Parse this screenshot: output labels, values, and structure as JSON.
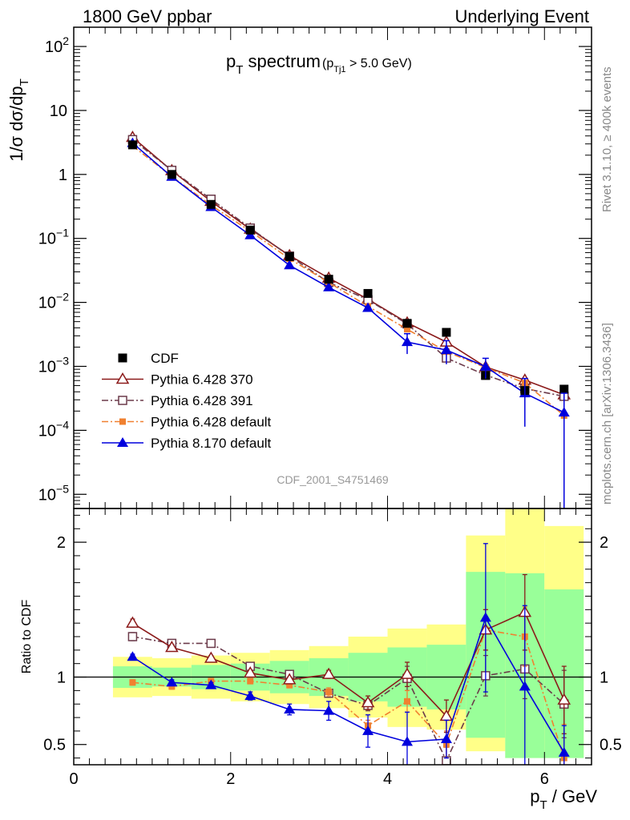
{
  "header": {
    "left": "1800 GeV ppbar",
    "right": "Underlying Event"
  },
  "side_labels": {
    "rivet": "Rivet 3.1.10, ≥ 400k events",
    "mcplots": "mcplots.cern.ch [arXiv:1306.3436]"
  },
  "plot_title": {
    "main": "p",
    "main_sub": "T",
    "main_rest": " spectrum",
    "cut_open": "(p",
    "cut_sub": "Tj1",
    "cut_rest": " > 5.0 GeV)"
  },
  "analysis_id": "CDF_2001_S4751469",
  "colors": {
    "cdf": "#000000",
    "p370": "#8b1a1a",
    "p391": "#6b3a4a",
    "pdef": "#f08030",
    "p8": "#0000dd",
    "band_yellow": "#ffff88",
    "band_green": "#99ff99"
  },
  "chart_data": [
    {
      "type": "line",
      "panel": "main",
      "ylabel": "1/σ dσ/dp_T",
      "yscale": "log",
      "ylim": [
        6e-06,
        200
      ],
      "xlim": [
        0,
        6.6
      ],
      "y_ticks": [
        {
          "value": 100,
          "label": "10",
          "exp": "2"
        },
        {
          "value": 10,
          "label": "10",
          "exp": ""
        },
        {
          "value": 1,
          "label": "1",
          "exp": ""
        },
        {
          "value": 0.1,
          "label": "10",
          "exp": "−1"
        },
        {
          "value": 0.01,
          "label": "10",
          "exp": "−2"
        },
        {
          "value": 0.001,
          "label": "10",
          "exp": "−3"
        },
        {
          "value": 0.0001,
          "label": "10",
          "exp": "−4"
        },
        {
          "value": 1e-05,
          "label": "10",
          "exp": "−5"
        }
      ],
      "legend_position": "lower-left",
      "x": [
        0.75,
        1.25,
        1.75,
        2.25,
        2.75,
        3.25,
        3.75,
        4.25,
        4.75,
        5.25,
        5.75,
        6.25
      ],
      "series": [
        {
          "name": "CDF",
          "key": "cdf",
          "values": [
            2.9,
            1.0,
            0.34,
            0.135,
            0.052,
            0.023,
            0.0138,
            0.0047,
            0.0034,
            0.00072,
            0.00042,
            0.00044
          ]
        },
        {
          "name": "Pythia 6.428 370",
          "key": "p370",
          "values": [
            3.8,
            1.15,
            0.38,
            0.14,
            0.054,
            0.024,
            0.0112,
            0.0048,
            0.0024,
            0.00098,
            0.00061,
            0.00036
          ]
        },
        {
          "name": "Pythia 6.428 391",
          "key": "p391",
          "values": [
            3.5,
            1.16,
            0.41,
            0.145,
            0.053,
            0.0205,
            0.011,
            0.0046,
            0.00135,
            0.00073,
            0.00045,
            0.00034
          ]
        },
        {
          "name": "Pythia 6.428 default",
          "key": "pdef",
          "values": [
            2.8,
            0.93,
            0.33,
            0.13,
            0.048,
            0.0205,
            0.0087,
            0.0038,
            0.0017,
            0.00096,
            0.00055,
            0.00017
          ]
        },
        {
          "name": "Pythia 8.170 default",
          "key": "p8",
          "values": [
            3.1,
            0.92,
            0.31,
            0.112,
            0.038,
            0.0172,
            0.0082,
            0.0024,
            0.0018,
            0.00099,
            0.00038,
            0.00019
          ]
        }
      ]
    },
    {
      "type": "line",
      "panel": "ratio",
      "ylabel": "Ratio to CDF",
      "xlabel": "p_T / GeV",
      "ylim": [
        0.35,
        2.25
      ],
      "xlim": [
        0,
        6.6
      ],
      "y_ticks": [
        0.5,
        1,
        2
      ],
      "x_ticks": [
        0,
        2,
        4,
        6
      ],
      "x": [
        0.75,
        1.25,
        1.75,
        2.25,
        2.75,
        3.25,
        3.75,
        4.25,
        4.75,
        5.25,
        5.75,
        6.25
      ],
      "bins": [
        [
          0.5,
          1.0
        ],
        [
          1.0,
          1.5
        ],
        [
          1.5,
          2.0
        ],
        [
          2.0,
          2.5
        ],
        [
          2.5,
          3.0
        ],
        [
          3.0,
          3.5
        ],
        [
          3.5,
          4.0
        ],
        [
          4.0,
          4.5
        ],
        [
          4.5,
          5.0
        ],
        [
          5.0,
          5.5
        ],
        [
          5.5,
          6.0
        ],
        [
          6.0,
          6.5
        ]
      ],
      "band_yellow": [
        [
          0.85,
          1.15
        ],
        [
          0.86,
          1.14
        ],
        [
          0.84,
          1.16
        ],
        [
          0.82,
          1.18
        ],
        [
          0.8,
          1.2
        ],
        [
          0.77,
          1.23
        ],
        [
          0.7,
          1.3
        ],
        [
          0.63,
          1.36
        ],
        [
          0.61,
          1.39
        ],
        [
          0.45,
          2.05
        ],
        [
          0.4,
          2.25
        ],
        [
          0.4,
          2.12
        ]
      ],
      "band_green": [
        [
          0.92,
          1.08
        ],
        [
          0.93,
          1.07
        ],
        [
          0.91,
          1.09
        ],
        [
          0.9,
          1.1
        ],
        [
          0.88,
          1.12
        ],
        [
          0.86,
          1.14
        ],
        [
          0.82,
          1.18
        ],
        [
          0.78,
          1.22
        ],
        [
          0.76,
          1.24
        ],
        [
          0.55,
          1.78
        ],
        [
          0.4,
          1.77
        ],
        [
          0.4,
          1.65
        ]
      ],
      "series": [
        {
          "name": "Pythia 6.428 370",
          "key": "p370",
          "values": [
            1.4,
            1.22,
            1.14,
            1.03,
            0.98,
            1.02,
            0.81,
            1.02,
            0.71,
            1.35,
            1.48,
            0.83
          ],
          "err": [
            0.03,
            0.02,
            0.02,
            0.02,
            0.02,
            0.03,
            0.05,
            0.09,
            0.12,
            0.15,
            0.28,
            0.25
          ]
        },
        {
          "name": "Pythia 6.428 391",
          "key": "p391",
          "values": [
            1.3,
            1.25,
            1.25,
            1.08,
            1.02,
            0.88,
            0.79,
            0.99,
            0.38,
            1.01,
            1.06,
            0.8
          ],
          "err": [
            0.03,
            0.02,
            0.02,
            0.02,
            0.02,
            0.03,
            0.04,
            0.09,
            0.1,
            0.15,
            0.22,
            0.25
          ]
        },
        {
          "name": "Pythia 6.428 default",
          "key": "pdef",
          "values": [
            0.96,
            0.93,
            0.97,
            0.97,
            0.94,
            0.89,
            0.64,
            0.82,
            0.5,
            1.35,
            1.3,
            0.4
          ],
          "err": [
            0.02,
            0.02,
            0.02,
            0.02,
            0.02,
            0.03,
            0.04,
            0.08,
            0.1,
            0.15,
            0.22,
            0.25
          ]
        },
        {
          "name": "Pythia 8.170 default",
          "key": "p8",
          "values": [
            1.15,
            0.96,
            0.94,
            0.86,
            0.76,
            0.75,
            0.6,
            0.52,
            0.54,
            1.44,
            0.93,
            0.44
          ],
          "err": [
            0.02,
            0.02,
            0.02,
            0.03,
            0.04,
            0.07,
            0.12,
            0.22,
            0.14,
            0.55,
            0.6,
            0.2
          ]
        }
      ]
    }
  ]
}
